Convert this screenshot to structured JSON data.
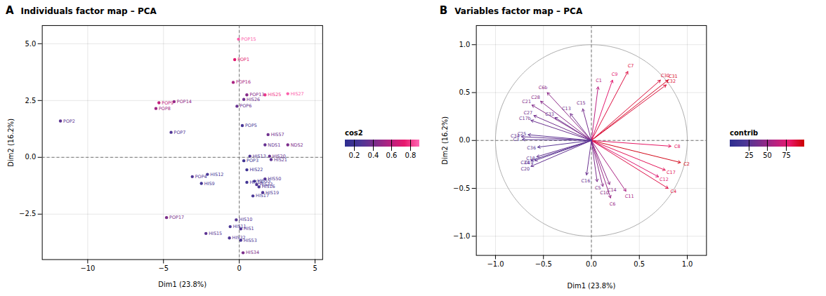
{
  "chart_data": [
    {
      "type": "scatter",
      "title": "Individuals factor map – PCA",
      "annotations": [
        {
          "text": "A"
        }
      ],
      "xlabel": "Dim1 (23.8%)",
      "ylabel": "Dim2 (16.2%)",
      "xlim": [
        -13,
        5.5
      ],
      "ylim": [
        -4.5,
        5.8
      ],
      "xticks": [
        -10,
        -5,
        0,
        5
      ],
      "yticks": [
        -2.5,
        {
          "value": 0,
          "label": "0.0"
        },
        2.5,
        {
          "value": 5,
          "label": "5.0"
        }
      ],
      "grid": true,
      "points": {
        "labels": [
          "POP15",
          "POP1",
          "POP16",
          "POP13",
          "HIS26",
          "HIS27",
          "HIS25",
          "POP6",
          "POP9",
          "POP8",
          "POP14",
          "POP2",
          "POP5",
          "HIS57",
          "NDS1",
          "NDS2",
          "POP7",
          "HIS13",
          "HIS20",
          "POP3",
          "HIS21",
          "HIS22",
          "HIS12",
          "POP4",
          "HIS14",
          "HIS55",
          "HIS50",
          "HIS9",
          "HIS33",
          "HIS16",
          "HIS19",
          "HIS17",
          "POP17",
          "HIS10",
          "HIS11",
          "HIS1",
          "HIS15",
          "HIS32",
          "HIS53",
          "HIS34"
        ],
        "x": [
          -0.05,
          -0.3,
          -0.4,
          0.5,
          0.3,
          3.2,
          1.7,
          -0.15,
          -5.3,
          -5.5,
          -4.3,
          -11.8,
          0.2,
          1.9,
          1.7,
          3.2,
          -4.5,
          0.7,
          2.0,
          0.3,
          2.1,
          0.5,
          -2.1,
          -3.1,
          0.5,
          1.0,
          1.7,
          -2.5,
          1.15,
          1.3,
          1.55,
          0.9,
          -4.8,
          -0.2,
          -0.6,
          0.1,
          -2.2,
          -0.65,
          0.1,
          0.25
        ],
        "y": [
          5.2,
          4.3,
          3.3,
          2.75,
          2.55,
          2.8,
          2.75,
          2.25,
          2.4,
          2.15,
          2.45,
          1.6,
          1.4,
          1.0,
          0.55,
          0.55,
          1.1,
          0.05,
          0.05,
          -0.15,
          -0.1,
          -0.55,
          -0.75,
          -0.85,
          -1.1,
          -1.05,
          -0.95,
          -1.15,
          -1.2,
          -1.3,
          -1.55,
          -1.7,
          -2.65,
          -2.75,
          -3.05,
          -3.15,
          -3.35,
          -3.55,
          -3.65,
          -4.2
        ],
        "cos2": [
          0.88,
          0.72,
          0.55,
          0.45,
          0.38,
          0.88,
          0.8,
          0.35,
          0.62,
          0.52,
          0.48,
          0.32,
          0.25,
          0.38,
          0.35,
          0.42,
          0.28,
          0.28,
          0.35,
          0.22,
          0.32,
          0.2,
          0.25,
          0.28,
          0.22,
          0.25,
          0.3,
          0.22,
          0.28,
          0.26,
          0.28,
          0.26,
          0.42,
          0.3,
          0.26,
          0.28,
          0.32,
          0.28,
          0.26,
          0.42
        ]
      },
      "colorbar": {
        "title": "cos2",
        "range": [
          0.1,
          0.9
        ],
        "ticks": [
          0.2,
          0.4,
          0.6,
          0.8
        ],
        "colors": [
          "#2d2d8f",
          "#4a3796",
          "#7b2d8b",
          "#b52281",
          "#e8186d",
          "#ff69b4"
        ]
      }
    },
    {
      "type": "arrows",
      "title": "Variables factor map – PCA",
      "annotations": [
        {
          "text": "B"
        }
      ],
      "xlabel": "Dim1 (23.8%)",
      "ylabel": "Dim2 (16.2%)",
      "xlim": [
        -1.2,
        1.2
      ],
      "ylim": [
        -1.2,
        1.2
      ],
      "xticks": [
        {
          "value": -1,
          "label": "−1.0"
        },
        -0.5,
        {
          "value": 0,
          "label": "0.0"
        },
        0.5,
        {
          "value": 1,
          "label": "1.0"
        }
      ],
      "yticks": [
        {
          "value": -1,
          "label": "−1.0"
        },
        -0.5,
        {
          "value": 0,
          "label": "0.0"
        },
        0.5,
        {
          "value": 1,
          "label": "1.0"
        }
      ],
      "grid": true,
      "arrows": {
        "labels": [
          "C7",
          "C9",
          "C1",
          "C30",
          "C31",
          "C32",
          "C8",
          "C2",
          "C17",
          "C12",
          "C4",
          "C11",
          "C6",
          "C10",
          "C14",
          "C5",
          "C16",
          "C13",
          "C15",
          "C33",
          "C21",
          "C28",
          "C6b",
          "C27",
          "C17b",
          "C34",
          "C25",
          "C36",
          "C18",
          "C19",
          "C24",
          "C20",
          "C3"
        ],
        "x": [
          0.38,
          0.22,
          0.07,
          0.72,
          0.8,
          0.78,
          0.83,
          0.93,
          0.77,
          0.7,
          0.8,
          0.36,
          0.2,
          0.12,
          0.19,
          0.06,
          -0.05,
          -0.22,
          -0.09,
          -0.38,
          -0.62,
          -0.53,
          -0.46,
          -0.6,
          -0.63,
          -0.73,
          -0.66,
          -0.56,
          -0.57,
          -0.59,
          -0.63,
          -0.63,
          -0.72
        ],
        "y": [
          0.72,
          0.63,
          0.56,
          0.63,
          0.63,
          0.58,
          -0.06,
          -0.23,
          -0.31,
          -0.38,
          -0.5,
          -0.53,
          -0.6,
          -0.48,
          -0.46,
          -0.43,
          -0.36,
          0.28,
          0.33,
          0.24,
          0.37,
          0.41,
          0.5,
          0.26,
          0.21,
          0.04,
          0.06,
          -0.07,
          -0.17,
          -0.21,
          -0.21,
          -0.27,
          0.01
        ],
        "contrib": [
          88,
          78,
          62,
          90,
          93,
          90,
          82,
          96,
          84,
          76,
          87,
          56,
          50,
          44,
          46,
          40,
          33,
          36,
          38,
          33,
          42,
          44,
          46,
          36,
          33,
          30,
          28,
          26,
          30,
          28,
          26,
          30,
          26
        ]
      },
      "colorbar": {
        "title": "contrib",
        "range": [
          0,
          100
        ],
        "ticks": [
          25,
          50,
          75
        ],
        "colors": [
          "#2d2d8f",
          "#4a3796",
          "#7b2d8b",
          "#b52281",
          "#e8186d",
          "#cc0000"
        ]
      }
    }
  ]
}
